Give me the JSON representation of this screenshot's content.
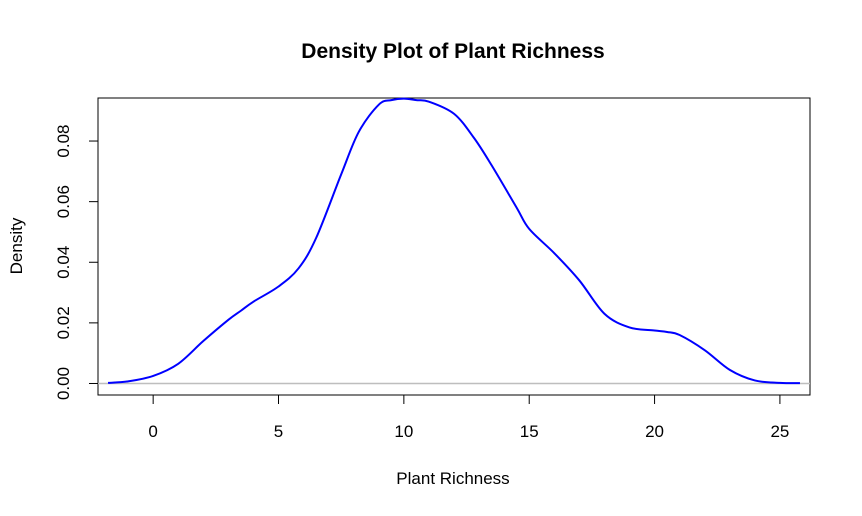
{
  "chart_data": {
    "type": "line",
    "title": "Density Plot of Plant Richness",
    "xlabel": "Plant Richness",
    "ylabel": "Density",
    "xlim": [
      -2.2,
      26.2
    ],
    "ylim": [
      -0.0038,
      0.0942
    ],
    "x_ticks": [
      0,
      5,
      10,
      15,
      20,
      25
    ],
    "y_ticks": [
      0.0,
      0.02,
      0.04,
      0.06,
      0.08
    ],
    "x_tick_labels": [
      "0",
      "5",
      "10",
      "15",
      "20",
      "25"
    ],
    "y_tick_labels": [
      "0.00",
      "0.02",
      "0.04",
      "0.06",
      "0.08"
    ],
    "grid": false,
    "baseline": 0,
    "colors": {
      "line": "#0000ff",
      "baseline": "#bebebe",
      "frame": "#000000"
    },
    "series": [
      {
        "x": [
          -1.8,
          -1.0,
          0.0,
          1.0,
          2.0,
          3.0,
          3.5,
          4.0,
          5.0,
          5.8,
          6.5,
          7.5,
          8.2,
          9.0,
          9.5,
          10.0,
          10.5,
          11.0,
          12.0,
          12.8,
          13.5,
          14.5,
          15.0,
          16.0,
          17.0,
          18.0,
          19.0,
          20.0,
          20.5,
          21.0,
          22.0,
          23.0,
          24.0,
          25.0,
          25.8
        ],
        "y": [
          0.0002,
          0.0007,
          0.0025,
          0.0065,
          0.014,
          0.021,
          0.024,
          0.027,
          0.032,
          0.038,
          0.048,
          0.069,
          0.083,
          0.092,
          0.0935,
          0.094,
          0.0935,
          0.093,
          0.089,
          0.081,
          0.072,
          0.058,
          0.051,
          0.043,
          0.034,
          0.023,
          0.0185,
          0.0175,
          0.017,
          0.016,
          0.011,
          0.0045,
          0.001,
          0.0002,
          0.0001
        ]
      }
    ]
  }
}
